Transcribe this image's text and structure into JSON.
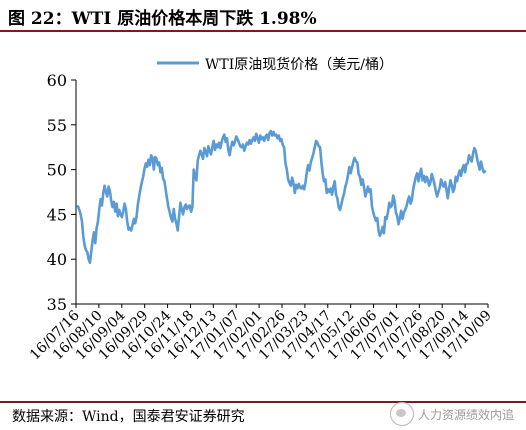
{
  "header": {
    "title": "图 22：WTI 原油价格本周下跌 1.98%"
  },
  "footer": {
    "source": "数据来源：Wind，国泰君安证券研究",
    "watermark": "人力资源绩效内追"
  },
  "colors": {
    "line": "#5b9bd5",
    "axis": "#000000",
    "rule": "#7a1a24"
  },
  "chart_data": {
    "type": "line",
    "title": "",
    "xlabel": "",
    "ylabel": "",
    "ylim": [
      35,
      60
    ],
    "yticks": [
      35,
      40,
      45,
      50,
      55,
      60
    ],
    "grid": false,
    "legend_position": "top-center",
    "x_tick_labels": [
      "16/07/16",
      "16/08/10",
      "16/09/04",
      "16/09/29",
      "16/10/24",
      "16/11/18",
      "16/12/13",
      "17/01/07",
      "17/02/01",
      "17/02/26",
      "17/03/23",
      "17/04/17",
      "17/05/12",
      "17/06/06",
      "17/07/01",
      "17/07/26",
      "17/08/20",
      "17/09/14",
      "17/10/09"
    ],
    "series": [
      {
        "name": "WTI原油现货价格（美元/桶）",
        "values": [
          45.9,
          45.5,
          45.0,
          44.2,
          42.5,
          41.5,
          41.0,
          40.8,
          40.0,
          39.6,
          40.9,
          42.1,
          43.0,
          41.8,
          43.5,
          44.2,
          45.6,
          46.7,
          46.0,
          47.4,
          48.2,
          47.5,
          47.0,
          48.1,
          47.6,
          46.5,
          45.8,
          46.4,
          45.3,
          46.2,
          44.8,
          45.5,
          45.0,
          44.7,
          45.3,
          46.2,
          45.6,
          44.2,
          43.3,
          43.5,
          43.2,
          43.8,
          44.5,
          44.0,
          44.7,
          46.1,
          47.0,
          47.9,
          48.6,
          49.2,
          50.1,
          50.7,
          50.3,
          51.1,
          50.5,
          51.6,
          51.3,
          50.0,
          51.4,
          51.2,
          50.5,
          50.8,
          49.7,
          50.2,
          49.0,
          48.7,
          47.7,
          46.7,
          45.8,
          45.2,
          44.6,
          44.2,
          45.6,
          44.5,
          44.0,
          43.2,
          44.8,
          46.3,
          45.6,
          45.0,
          45.8,
          46.1,
          45.6,
          45.9,
          46.0,
          45.3,
          45.8,
          50.0,
          49.2,
          48.8,
          51.0,
          51.6,
          52.1,
          51.7,
          51.2,
          52.4,
          52.0,
          51.5,
          52.6,
          52.1,
          51.7,
          52.5,
          53.2,
          52.2,
          52.8,
          52.5,
          53.0,
          52.4,
          53.1,
          53.6,
          53.9,
          53.1,
          53.5,
          52.2,
          51.6,
          52.5,
          53.1,
          52.7,
          53.1,
          53.7,
          53.4,
          53.0,
          52.6,
          52.5,
          52.8,
          52.1,
          52.6,
          53.0,
          52.8,
          53.3,
          52.9,
          53.3,
          53.6,
          53.2,
          54.0,
          53.5,
          53.0,
          53.8,
          53.4,
          53.6,
          53.2,
          53.7,
          53.9,
          53.3,
          54.1,
          54.3,
          53.8,
          54.2,
          53.8,
          53.9,
          53.5,
          53.8,
          53.2,
          53.4,
          52.7,
          52.5,
          50.7,
          50.0,
          48.9,
          48.5,
          48.2,
          49.1,
          48.5,
          47.4,
          48.3,
          47.9,
          48.4,
          48.0,
          47.9,
          48.2,
          47.8,
          48.5,
          49.7,
          50.5,
          49.9,
          50.8,
          51.3,
          51.8,
          52.5,
          53.2,
          53.0,
          52.6,
          52.5,
          50.8,
          49.5,
          48.7,
          48.9,
          47.4,
          47.8,
          47.5,
          47.9,
          47.2,
          48.1,
          48.7,
          47.2,
          46.8,
          45.8,
          45.5,
          46.1,
          46.8,
          47.3,
          48.1,
          48.6,
          49.4,
          50.3,
          49.6,
          50.2,
          50.9,
          51.3,
          50.9,
          50.8,
          49.5,
          49.2,
          48.3,
          48.9,
          48.1,
          47.0,
          47.5,
          48.1,
          47.5,
          47.8,
          45.9,
          45.2,
          44.7,
          44.3,
          44.6,
          43.2,
          42.6,
          43.0,
          43.6,
          42.9,
          44.7,
          44.5,
          45.2,
          46.3,
          45.8,
          46.0,
          47.1,
          46.5,
          45.2,
          44.8,
          43.9,
          44.6,
          45.4,
          44.5,
          45.2,
          45.5,
          45.9,
          46.6,
          47.0,
          46.2,
          46.6,
          47.8,
          48.5,
          49.2,
          49.6,
          48.7,
          49.5,
          50.1,
          48.8,
          49.3,
          48.6,
          49.2,
          48.9,
          48.2,
          48.6,
          49.5,
          49.0,
          48.4,
          47.6,
          47.0,
          47.5,
          48.0,
          48.9,
          48.3,
          48.1,
          48.6,
          47.8,
          46.8,
          47.9,
          48.8,
          48.3,
          47.5,
          47.9,
          49.2,
          48.7,
          49.4,
          49.9,
          49.3,
          50.1,
          50.5,
          49.7,
          50.6,
          50.7,
          51.6,
          51.2,
          50.9,
          51.8,
          52.4,
          52.1,
          51.3,
          50.6,
          50.0,
          50.9,
          50.2,
          49.7,
          49.8
        ]
      }
    ]
  }
}
